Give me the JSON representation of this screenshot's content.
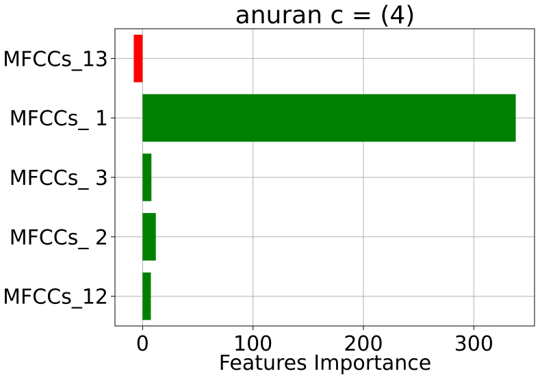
{
  "chart_data": {
    "type": "bar",
    "orientation": "horizontal",
    "title": "anuran c = (4)",
    "xlabel": "Features Importance",
    "ylabel": "",
    "categories": [
      "MFCCs_12",
      "MFCCs_ 2",
      "MFCCs_ 3",
      "MFCCs_ 1",
      "MFCCs_13"
    ],
    "values": [
      7.5,
      12,
      8,
      338,
      -8
    ],
    "xlim": [
      -25,
      355
    ],
    "xticks": [
      0,
      100,
      200,
      300
    ],
    "xtick_labels": [
      "0",
      "100",
      "200",
      "300"
    ],
    "grid": true,
    "legend": "none",
    "colors": {
      "positive": "#008000",
      "negative": "#ff0000",
      "grid": "#b0b0b0",
      "axis": "#000000"
    }
  }
}
